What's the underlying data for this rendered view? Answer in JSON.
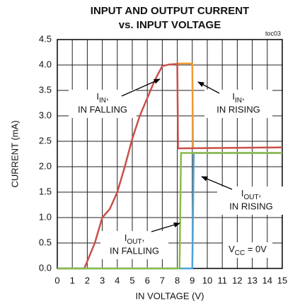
{
  "chart_data": {
    "type": "line",
    "title": [
      "INPUT AND OUTPUT CURRENT",
      "vs. INPUT VOLTAGE"
    ],
    "figure_id": "toc03",
    "x_label": "IN VOLTAGE (V)",
    "y_label": "CURRENT (mA)",
    "xlim": [
      0,
      15
    ],
    "ylim": [
      0,
      4.5
    ],
    "xticks": [
      0,
      1,
      2,
      3,
      4,
      5,
      6,
      7,
      8,
      9,
      10,
      11,
      12,
      13,
      14,
      15
    ],
    "yticks": [
      {
        "value": 0,
        "label": "0.0"
      },
      0.5,
      {
        "value": 1,
        "label": "1.0"
      },
      1.5,
      {
        "value": 2,
        "label": "2.0"
      },
      2.5,
      {
        "value": 3,
        "label": "3.0"
      },
      3.5,
      {
        "value": 4,
        "label": "4.0"
      },
      4.5
    ],
    "grid": true,
    "series": [
      {
        "name": "IIN, IN RISING",
        "color": "#f39a2e",
        "x": [
          8,
          9,
          9.05
        ],
        "values": [
          4.03,
          4.03,
          2.36
        ]
      },
      {
        "name": "IIN, IN FALLING",
        "color": "#c9504a",
        "x": [
          0,
          1.8,
          2.5,
          3,
          3.5,
          4,
          4.5,
          5,
          5.5,
          6,
          6.5,
          7,
          7.5,
          8,
          8.05,
          15
        ],
        "values": [
          0,
          0,
          0.5,
          1.0,
          1.17,
          1.5,
          2.0,
          2.55,
          3.0,
          3.35,
          3.7,
          3.98,
          4.01,
          4.02,
          2.36,
          2.38
        ]
      },
      {
        "name": "IOUT, IN RISING",
        "color": "#4aa3d8",
        "x": [
          0,
          9,
          9.1,
          15
        ],
        "values": [
          0,
          0,
          2.27,
          2.27
        ]
      },
      {
        "name": "IOUT, IN FALLING",
        "color": "#8dbb4a",
        "x": [
          0,
          8.15,
          8.25,
          15
        ],
        "values": [
          0,
          0,
          2.27,
          2.27
        ]
      }
    ],
    "annotations": [
      {
        "main": "I",
        "sub": "IN",
        "after": ",",
        "line2": "IN FALLING"
      },
      {
        "main": "I",
        "sub": "IN",
        "after": ",",
        "line2": "IN RISING"
      },
      {
        "main": "I",
        "sub": "OUT",
        "after": ",",
        "line2": "IN RISING"
      },
      {
        "main": "I",
        "sub": "OUT",
        "after": ",",
        "line2": "IN FALLING"
      },
      {
        "main": "V",
        "sub": "CC",
        "after": " = 0V"
      }
    ]
  }
}
